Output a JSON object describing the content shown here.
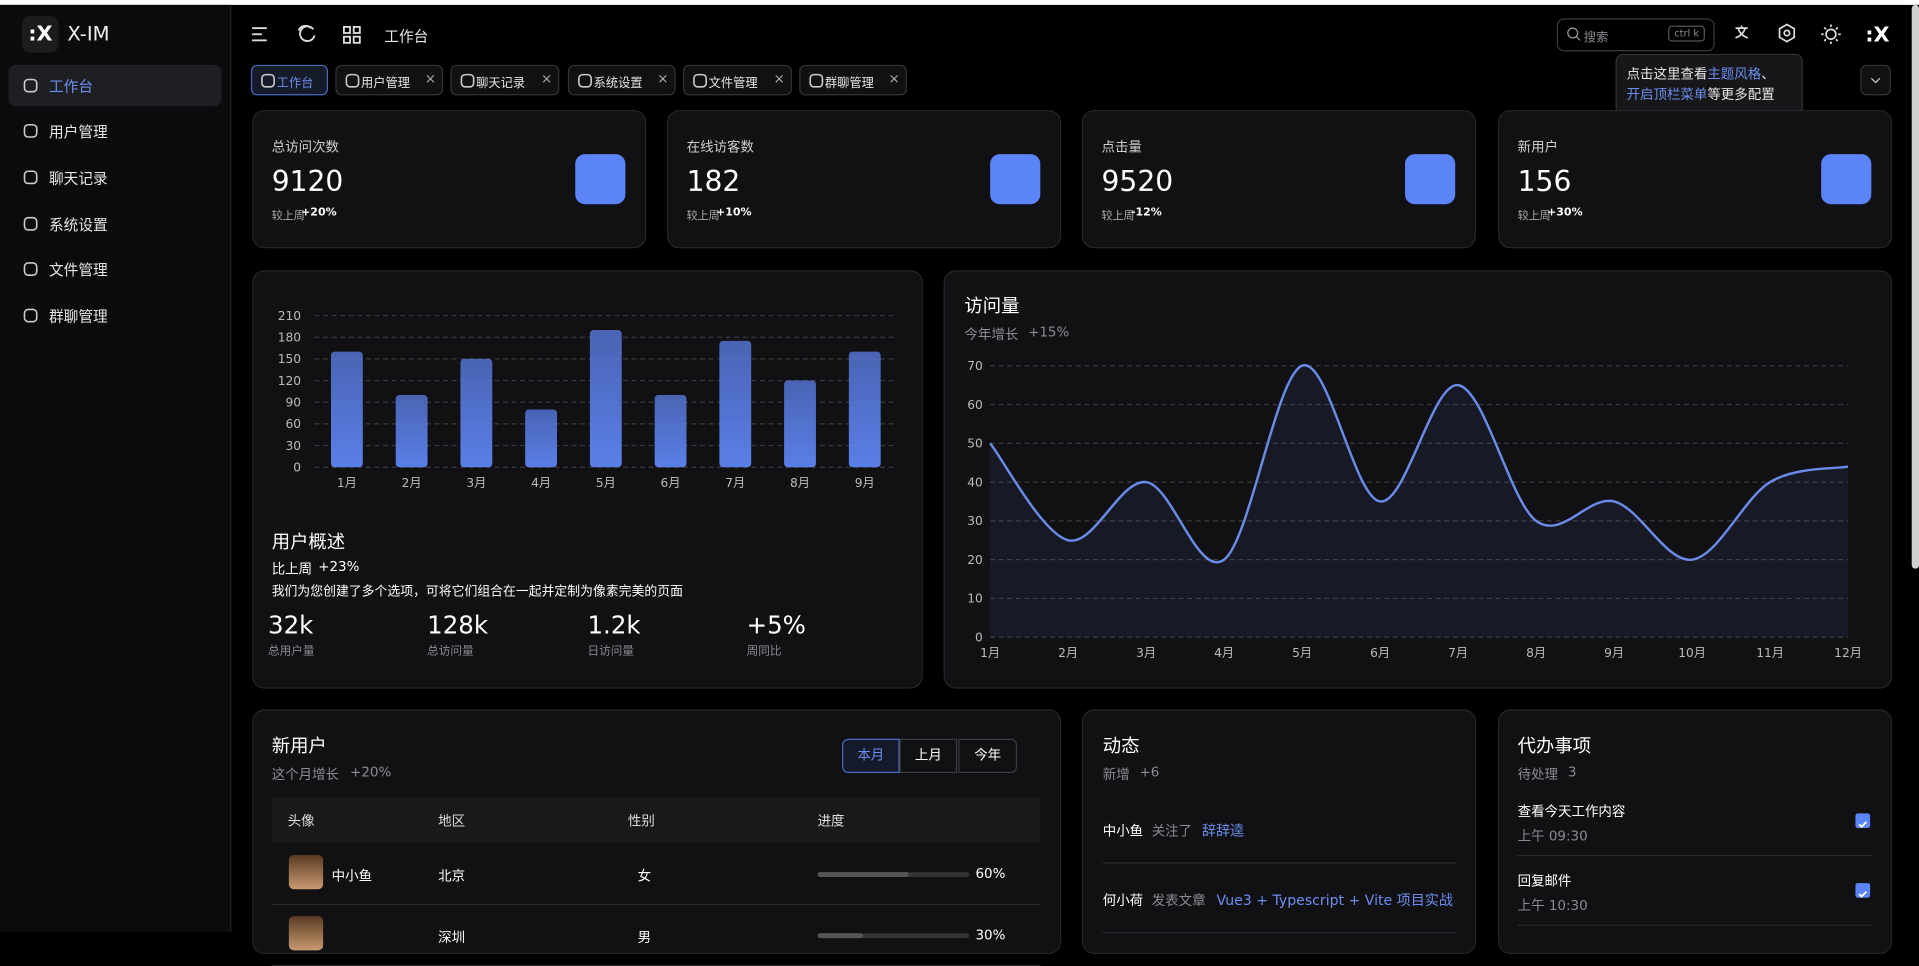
{
  "sidebar": {
    "logo": "X-IM",
    "menu": [
      "工作台",
      "用户管理",
      "聊天记录",
      "系统设置",
      "文件管理",
      "群聊管理"
    ]
  },
  "topbar": {
    "breadcrumb": "工作台",
    "search": "搜索",
    "shortcut": "ctrl k"
  },
  "tooltip": {
    "parts": [
      "点击这里查看",
      "主题风格",
      "、",
      "开启顶栏菜单",
      "等更多配置"
    ]
  },
  "tabs": [
    "工作台",
    "用户管理",
    "聊天记录",
    "系统设置",
    "文件管理",
    "群聊管理"
  ],
  "stats": [
    {
      "title": "总访问次数",
      "value": 9120,
      "compare": "较上周",
      "change": "+20%"
    },
    {
      "title": "在线访客数",
      "value": 182,
      "compare": "较上周",
      "change": "+10%"
    },
    {
      "title": "点击量",
      "value": 9520,
      "compare": "较上周",
      "change": "-12%"
    },
    {
      "title": "新用户",
      "value": 156,
      "compare": "较上周",
      "change": "+30%"
    }
  ],
  "bar_chart": {
    "type": "bar",
    "categories": [
      "1月",
      "2月",
      "3月",
      "4月",
      "5月",
      "6月",
      "7月",
      "8月",
      "9月"
    ],
    "values": [
      160,
      100,
      150,
      80,
      190,
      100,
      175,
      120,
      160
    ],
    "color": "#5b7fe8",
    "ylim": [
      0,
      210
    ],
    "yticks": [
      0,
      30,
      60,
      90,
      120,
      150,
      180,
      210
    ],
    "grid": true
  },
  "overview": {
    "title": "用户概述",
    "compare": "比上周",
    "change": "+23%",
    "description": "我们为您创建了多个选项，可将它们组合在一起并定制为像素完美的页面",
    "metrics": [
      {
        "value": "32k",
        "label": "总用户量"
      },
      {
        "value": "128k",
        "label": "总访问量"
      },
      {
        "value": "1.2k",
        "label": "日访问量"
      },
      {
        "value": "+5%",
        "label": "周同比"
      }
    ]
  },
  "line_chart": {
    "type": "line",
    "title": "访问量",
    "subtitle": "今年增长",
    "change": "+15%",
    "categories": [
      "1月",
      "2月",
      "3月",
      "4月",
      "5月",
      "6月",
      "7月",
      "8月",
      "9月",
      "10月",
      "11月",
      "12月"
    ],
    "values": [
      50,
      25,
      40,
      20,
      70,
      35,
      65,
      30,
      35,
      20,
      40,
      44
    ],
    "color": "#6a8ce8",
    "ylim": [
      0,
      70
    ],
    "yticks": [
      0,
      10,
      20,
      30,
      40,
      50,
      60,
      70
    ],
    "grid": true
  },
  "new_users": {
    "title": "新用户",
    "subtitle": "这个月增长",
    "change": "+20%",
    "filters": [
      "本月",
      "上月",
      "今年"
    ],
    "columns": [
      "头像",
      "地区",
      "性别",
      "进度"
    ],
    "rows": [
      {
        "name": "中小鱼",
        "region": "北京",
        "gender": "女",
        "progress": 60,
        "progress_label": "60%"
      },
      {
        "region": "深圳",
        "gender": "男",
        "progress": 30,
        "progress_label": "30%"
      }
    ]
  },
  "activity": {
    "title": "动态",
    "subtitle": "新增",
    "change": "+6",
    "items": [
      {
        "user": "中小鱼",
        "action": "关注了",
        "target": "辞辞逵"
      },
      {
        "user": "何小荷",
        "action": "发表文章",
        "target": "Vue3 + Typescript + Vite 项目实战"
      }
    ]
  },
  "todo": {
    "title": "代办事项",
    "subtitle": "待处理",
    "count": 3,
    "items": [
      {
        "title": "查看今天工作内容",
        "time": "上午 09:30",
        "done": true
      },
      {
        "title": "回复邮件",
        "time": "上午 10:30",
        "done": true
      }
    ]
  }
}
